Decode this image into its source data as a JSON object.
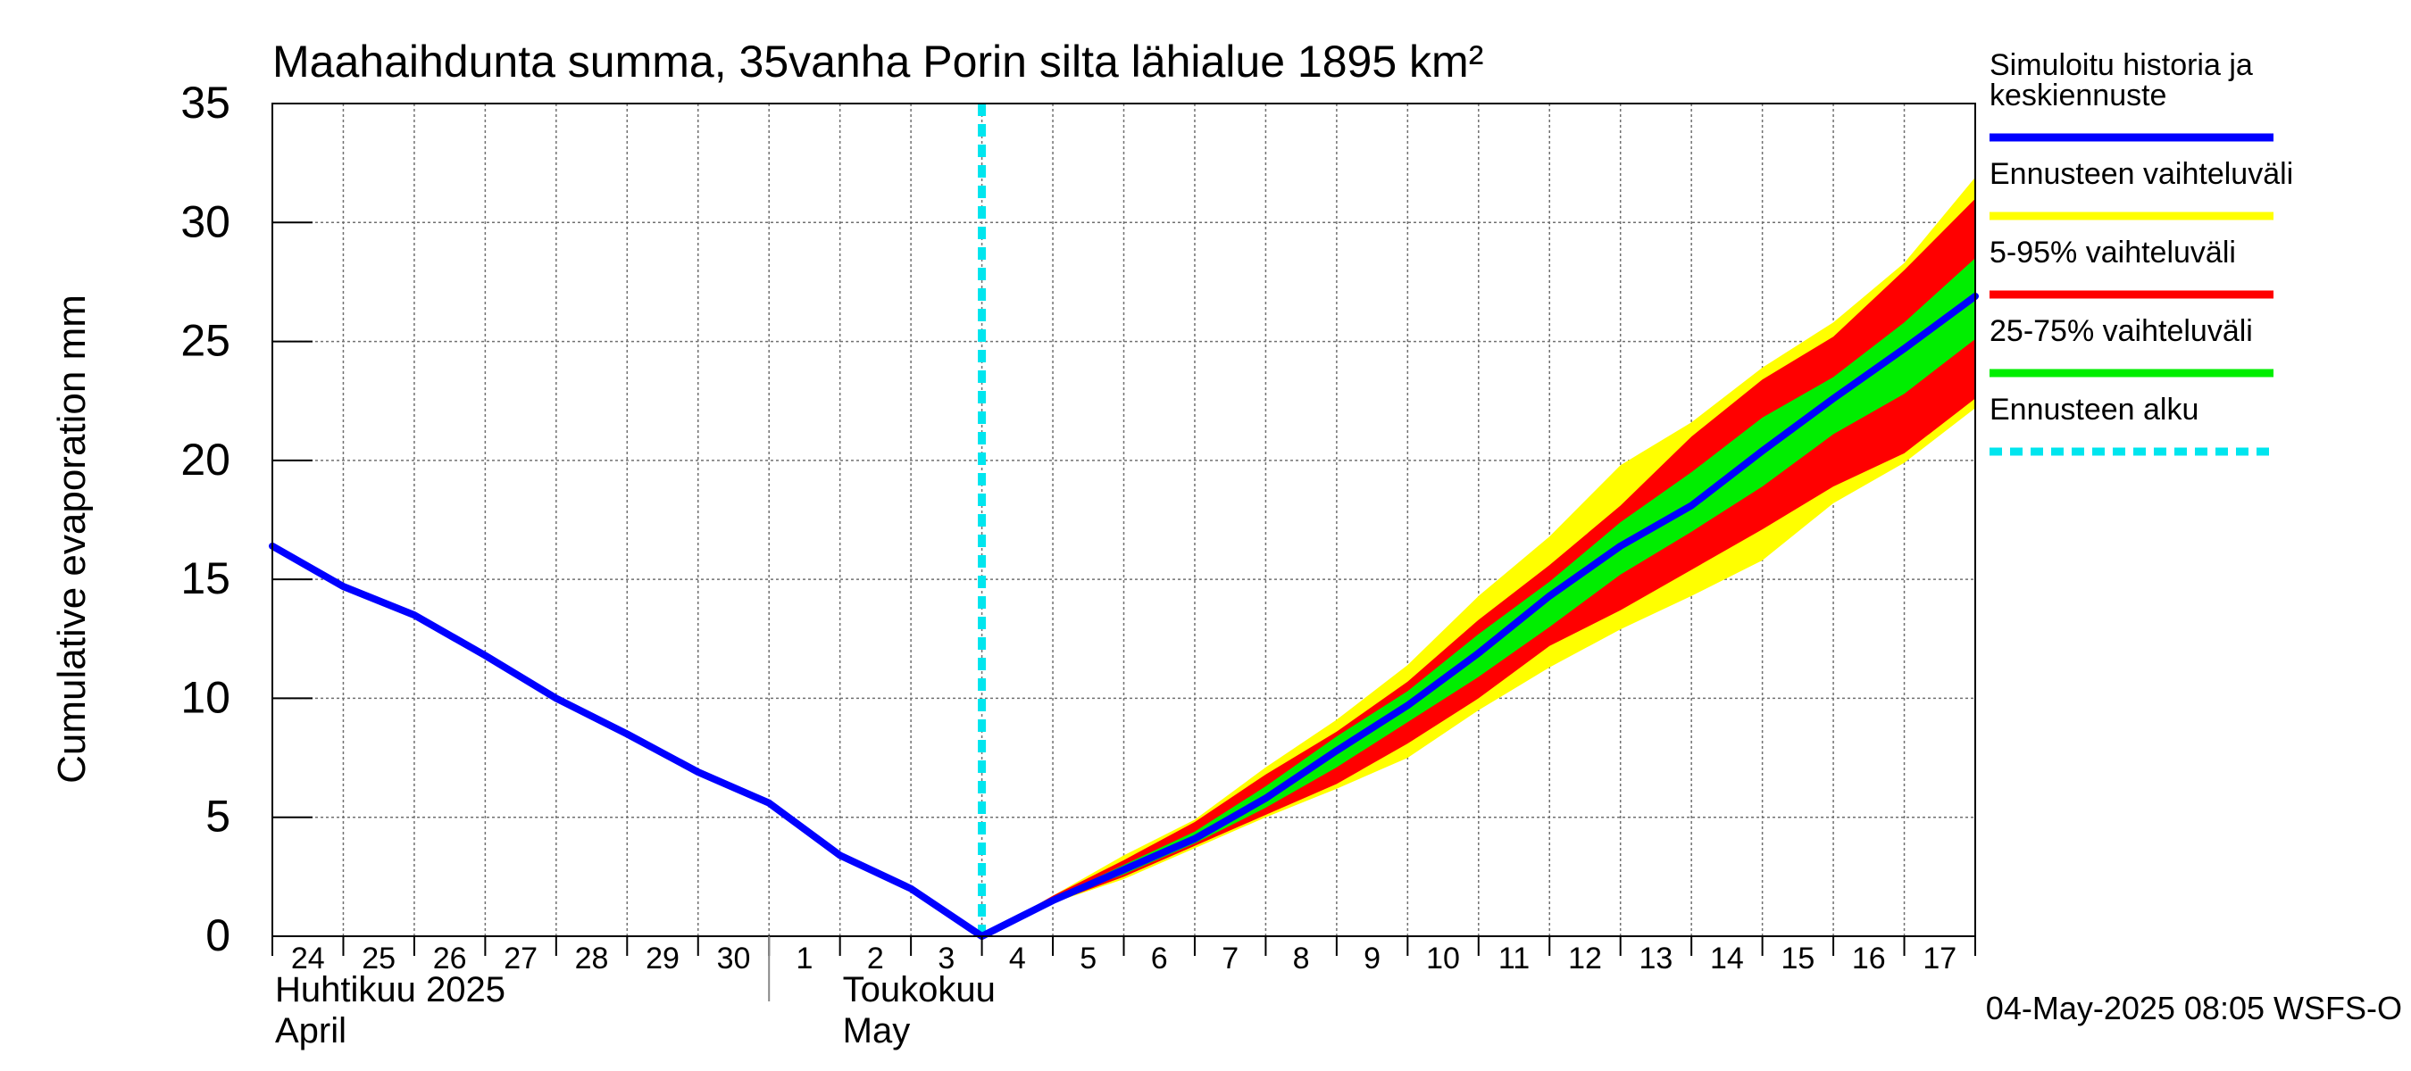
{
  "chart_data": {
    "type": "area",
    "title": "Maahaihdunta summa, 35vanha Porin silta lähialue 1895 km²",
    "ylabel": "Cumulative evaporation   mm",
    "ylim": [
      0,
      35
    ],
    "yticks": [
      0,
      5,
      10,
      15,
      20,
      25,
      30,
      35
    ],
    "xlim": [
      0,
      24
    ],
    "day_labels": [
      "24",
      "25",
      "26",
      "27",
      "28",
      "29",
      "30",
      "1",
      "2",
      "3",
      "4",
      "5",
      "6",
      "7",
      "8",
      "9",
      "10",
      "11",
      "12",
      "13",
      "14",
      "15",
      "16",
      "17"
    ],
    "month_labels": [
      {
        "x": 0,
        "line1": "Huhtikuu  2025",
        "line2": "April"
      },
      {
        "x": 8,
        "line1": "Toukokuu",
        "line2": "May"
      }
    ],
    "month_divider_x": 7,
    "forecast_start_x": 10,
    "legend_position": "right",
    "colors": {
      "history": "#0000ff",
      "range_full": "#ffff00",
      "range_5_95": "#ff0000",
      "range_25_75": "#00ee00",
      "forecast_start": "#00e5ee"
    },
    "series": [
      {
        "name": "Simuloitu historia ja keskiennuste",
        "x": [
          0,
          1,
          2,
          3,
          4,
          5,
          6,
          7,
          8,
          9,
          10,
          11,
          12,
          13,
          14,
          15,
          16,
          17,
          18,
          19,
          20,
          21,
          22,
          23,
          24
        ],
        "values": [
          16.4,
          14.7,
          13.5,
          11.8,
          10.0,
          8.5,
          6.9,
          5.6,
          3.4,
          2.0,
          0.0,
          1.5,
          2.8,
          4.1,
          5.8,
          7.8,
          9.7,
          11.9,
          14.3,
          16.4,
          18.1,
          20.4,
          22.6,
          24.7,
          26.9
        ]
      }
    ],
    "bands": [
      {
        "name": "Ennusteen vaihteluväli",
        "x": [
          10,
          11,
          12,
          13,
          14,
          15,
          16,
          17,
          18,
          19,
          20,
          21,
          22,
          23,
          24
        ],
        "low": [
          0.0,
          1.4,
          2.4,
          3.7,
          5.0,
          6.2,
          7.5,
          9.5,
          11.3,
          12.9,
          14.3,
          15.8,
          18.2,
          19.9,
          22.2
        ],
        "high": [
          0.0,
          1.7,
          3.4,
          4.9,
          7.1,
          9.1,
          11.4,
          14.3,
          16.8,
          19.8,
          21.6,
          23.9,
          25.8,
          28.3,
          31.9
        ]
      },
      {
        "name": "5-95% vaihteluväli",
        "x": [
          10,
          11,
          12,
          13,
          14,
          15,
          16,
          17,
          18,
          19,
          20,
          21,
          22,
          23,
          24
        ],
        "low": [
          0.0,
          1.4,
          2.5,
          3.8,
          5.1,
          6.4,
          8.1,
          10.0,
          12.2,
          13.7,
          15.4,
          17.1,
          18.9,
          20.3,
          22.6
        ],
        "high": [
          0.0,
          1.7,
          3.2,
          4.8,
          6.8,
          8.6,
          10.7,
          13.3,
          15.6,
          18.1,
          21.0,
          23.4,
          25.2,
          28.0,
          31.0
        ]
      },
      {
        "name": "25-75% vaihteluväli",
        "x": [
          10,
          11,
          12,
          13,
          14,
          15,
          16,
          17,
          18,
          19,
          20,
          21,
          22,
          23,
          24
        ],
        "low": [
          0.0,
          1.5,
          2.6,
          3.9,
          5.4,
          7.1,
          9.0,
          10.9,
          13.0,
          15.2,
          17.0,
          18.9,
          21.1,
          22.8,
          25.1
        ],
        "high": [
          0.0,
          1.6,
          3.0,
          4.4,
          6.3,
          8.4,
          10.3,
          12.7,
          14.9,
          17.4,
          19.5,
          21.8,
          23.5,
          25.8,
          28.5
        ]
      }
    ],
    "legend": [
      {
        "label_lines": [
          "Simuloitu historia ja",
          "keskiennuste"
        ],
        "color": "#0000ff",
        "style": "solid"
      },
      {
        "label_lines": [
          "Ennusteen vaihteluväli"
        ],
        "color": "#ffff00",
        "style": "solid"
      },
      {
        "label_lines": [
          "5-95% vaihteluväli"
        ],
        "color": "#ff0000",
        "style": "solid"
      },
      {
        "label_lines": [
          "25-75% vaihteluväli"
        ],
        "color": "#00ee00",
        "style": "solid"
      },
      {
        "label_lines": [
          "Ennusteen alku"
        ],
        "color": "#00e5ee",
        "style": "dashed"
      }
    ],
    "timestamp": "04-May-2025 08:05 WSFS-O"
  }
}
